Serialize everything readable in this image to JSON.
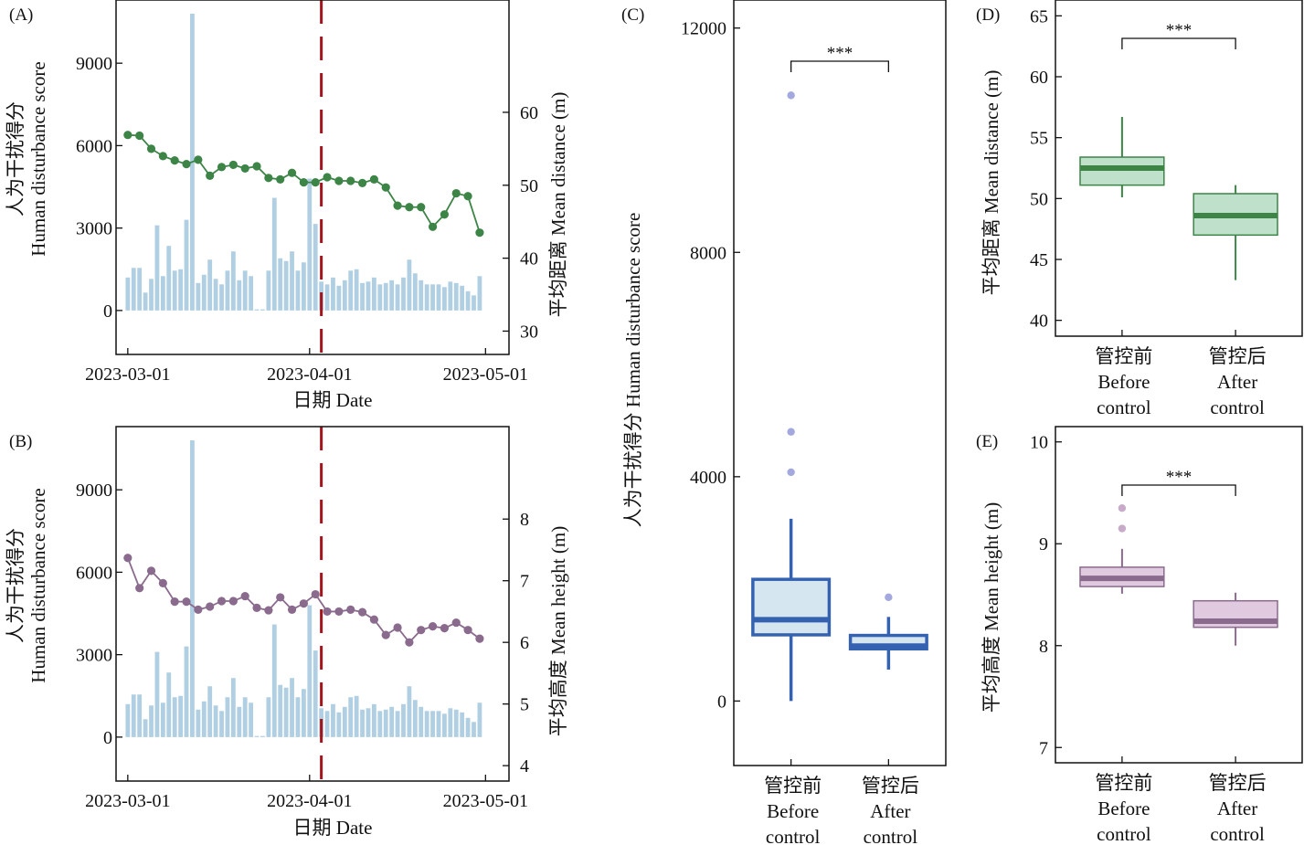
{
  "chart_data": [
    {
      "id": "A",
      "panel_label": "(A)",
      "type": "bar+line",
      "xlabel": "日期 Date",
      "ylabel_left": [
        "人为干扰得分",
        "Human disturbance score"
      ],
      "ylabel_right": "平均距离 Mean distance (m)",
      "x_ticks": [
        "2023-03-01",
        "2023-04-01",
        "2023-05-01"
      ],
      "y_left_ticks": [
        0,
        3000,
        6000,
        9000
      ],
      "y_left_range": [
        -1600,
        11300
      ],
      "y_right_ticks": [
        30,
        40,
        50,
        60
      ],
      "y_right_range": [
        26.8,
        75.4
      ],
      "x_range_days": [
        -2,
        65
      ],
      "control_date_day": 33,
      "control_line_color": "#a3141c",
      "bar_color": "#b0cfe2",
      "line_color": "#3d8447",
      "bar_series": {
        "name": "Human disturbance score",
        "start_date": "2023-03-01",
        "interval_days": 1,
        "values": [
          1200,
          1550,
          1550,
          650,
          1150,
          3100,
          1250,
          2350,
          1450,
          1500,
          3300,
          10800,
          1000,
          1300,
          1850,
          1150,
          950,
          1450,
          2150,
          1100,
          1450,
          1250,
          40,
          40,
          1450,
          4100,
          1900,
          1800,
          2150,
          1450,
          1750,
          4800,
          3150,
          1050,
          950,
          1200,
          900,
          1100,
          1450,
          1500,
          1000,
          1050,
          1200,
          950,
          1000,
          1100,
          950,
          1200,
          1850,
          1350,
          1100,
          950,
          950,
          950,
          850,
          1050,
          1000,
          900,
          700,
          550,
          1250
        ]
      },
      "line_series": {
        "name": "Mean distance (m)",
        "start_date": "2023-03-01",
        "interval_days": 2,
        "values": [
          56.9,
          56.8,
          55.0,
          54.0,
          53.4,
          52.9,
          53.5,
          51.3,
          52.5,
          52.8,
          52.3,
          52.6,
          51.0,
          50.8,
          51.7,
          50.4,
          50.4,
          51.1,
          50.6,
          50.6,
          50.3,
          50.8,
          49.7,
          47.2,
          47.0,
          47.0,
          44.3,
          46.0,
          48.9,
          48.5,
          43.5
        ]
      }
    },
    {
      "id": "B",
      "panel_label": "(B)",
      "type": "bar+line",
      "xlabel": "日期 Date",
      "ylabel_left": [
        "人为干扰得分",
        "Human disturbance score"
      ],
      "ylabel_right": "平均高度 Mean height (m)",
      "x_ticks": [
        "2023-03-01",
        "2023-04-01",
        "2023-05-01"
      ],
      "y_left_ticks": [
        0,
        3000,
        6000,
        9000
      ],
      "y_left_range": [
        -1600,
        11300
      ],
      "y_right_ticks": [
        4,
        5,
        6,
        7,
        8
      ],
      "y_right_range": [
        3.75,
        9.5
      ],
      "x_range_days": [
        -2,
        65
      ],
      "control_date_day": 33,
      "control_line_color": "#a3141c",
      "bar_color": "#b0cfe2",
      "line_color": "#8a6a8d",
      "bar_series": {
        "name": "Human disturbance score",
        "start_date": "2023-03-01",
        "interval_days": 1,
        "values": [
          1200,
          1550,
          1550,
          650,
          1150,
          3100,
          1250,
          2350,
          1450,
          1500,
          3300,
          10800,
          1000,
          1300,
          1850,
          1150,
          950,
          1450,
          2150,
          1100,
          1450,
          1250,
          40,
          40,
          1450,
          4100,
          1900,
          1800,
          2150,
          1450,
          1750,
          4800,
          3150,
          1050,
          950,
          1200,
          900,
          1100,
          1450,
          1500,
          1000,
          1050,
          1200,
          950,
          1000,
          1100,
          950,
          1200,
          1850,
          1350,
          1100,
          950,
          950,
          950,
          850,
          1050,
          1000,
          900,
          700,
          550,
          1250
        ]
      },
      "line_series": {
        "name": "Mean height (m)",
        "start_date": "2023-03-01",
        "interval_days": 2,
        "values": [
          7.37,
          6.88,
          7.16,
          6.96,
          6.66,
          6.66,
          6.53,
          6.58,
          6.67,
          6.67,
          6.75,
          6.56,
          6.52,
          6.73,
          6.53,
          6.63,
          6.78,
          6.5,
          6.5,
          6.53,
          6.49,
          6.37,
          6.12,
          6.24,
          6.0,
          6.2,
          6.26,
          6.23,
          6.32,
          6.2,
          6.06
        ]
      }
    },
    {
      "id": "C",
      "panel_label": "(C)",
      "type": "box",
      "ylabel": "人为干扰得分 Human disturbance score",
      "y_ticks": [
        0,
        4000,
        8000,
        12000
      ],
      "y_range": [
        -1150,
        12500
      ],
      "categories": [
        [
          "管控前",
          "Before",
          "control"
        ],
        [
          "管控后",
          "After",
          "control"
        ]
      ],
      "fill_color": "#d6e6f0",
      "stroke_color": "#3462b0",
      "outlier_color": "#a3a9de",
      "significance": "***",
      "boxes": [
        {
          "whisker_low": 0,
          "q1": 1180,
          "median": 1450,
          "q3": 2170,
          "whisker_high": 3250,
          "outliers": [
            10800,
            4800,
            4080
          ]
        },
        {
          "whisker_low": 560,
          "q1": 930,
          "median": 980,
          "q3": 1170,
          "whisker_high": 1500,
          "outliers": [
            1850
          ]
        }
      ]
    },
    {
      "id": "D",
      "panel_label": "(D)",
      "type": "box",
      "ylabel": "平均距离 Mean distance (m)",
      "y_ticks": [
        40,
        45,
        50,
        55,
        60,
        65
      ],
      "y_range": [
        38.7,
        66.3
      ],
      "categories": [
        [
          "管控前",
          "Before",
          "control"
        ],
        [
          "管控后",
          "After",
          "control"
        ]
      ],
      "fill_color": "#bfe0ca",
      "stroke_color": "#3d8447",
      "outlier_color": "#7fbf8a",
      "significance": "***",
      "boxes": [
        {
          "whisker_low": 50.1,
          "q1": 51.1,
          "median": 52.5,
          "q3": 53.4,
          "whisker_high": 56.7,
          "outliers": []
        },
        {
          "whisker_low": 43.3,
          "q1": 47.0,
          "median": 48.6,
          "q3": 50.4,
          "whisker_high": 51.1,
          "outliers": []
        }
      ]
    },
    {
      "id": "E",
      "panel_label": "(E)",
      "type": "box",
      "ylabel": "平均高度 Mean height (m)",
      "y_ticks": [
        7,
        8,
        9,
        10
      ],
      "y_range": [
        6.85,
        10.15
      ],
      "categories": [
        [
          "管控前",
          "Before",
          "control"
        ],
        [
          "管控后",
          "After",
          "control"
        ]
      ],
      "fill_color": "#e0cadf",
      "stroke_color": "#8a6a8d",
      "outlier_color": "#c8aac9",
      "significance": "***",
      "boxes": [
        {
          "whisker_low": 8.51,
          "q1": 8.58,
          "median": 8.66,
          "q3": 8.77,
          "whisker_high": 8.95,
          "outliers": [
            9.35,
            9.15
          ]
        },
        {
          "whisker_low": 8.0,
          "q1": 8.18,
          "median": 8.24,
          "q3": 8.44,
          "whisker_high": 8.52,
          "outliers": []
        }
      ]
    }
  ]
}
